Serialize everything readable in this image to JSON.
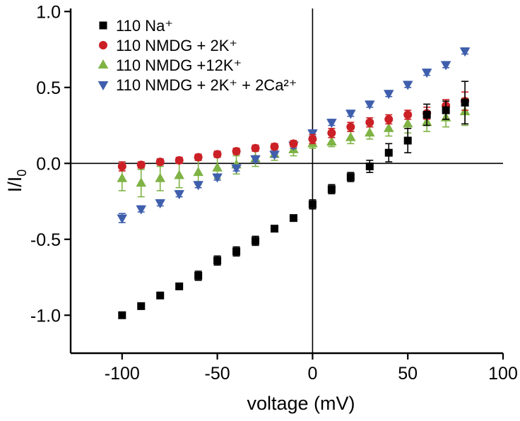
{
  "chart_data": {
    "type": "scatter",
    "title": "",
    "xlabel": "voltage (mV)",
    "ylabel_main": "I/I",
    "ylabel_sub": "0",
    "xlim": [
      -127,
      100
    ],
    "ylim": [
      -1.25,
      1.02
    ],
    "xticks": [
      -100,
      -50,
      0,
      50,
      100
    ],
    "xtick_labels": [
      "-100",
      "-50",
      "0",
      "50",
      "100"
    ],
    "yticks": [
      -1.0,
      -0.5,
      0.0,
      0.5,
      1.0
    ],
    "ytick_labels": [
      "-1.0",
      "-0.5",
      "0.0",
      "0.5",
      "1.0"
    ],
    "grid": false,
    "legend_position": "top-left",
    "reference_lines": {
      "vertical_x": 0,
      "horizontal_y": 0
    },
    "axis_color": "#000000",
    "x": [
      -100,
      -90,
      -80,
      -70,
      -60,
      -50,
      -40,
      -30,
      -20,
      -10,
      0,
      10,
      20,
      30,
      40,
      50,
      60,
      70,
      80
    ],
    "series": [
      {
        "id": "na",
        "label": "110 Na⁺",
        "marker": "square",
        "color": "#000000",
        "y": [
          -1.0,
          -0.94,
          -0.87,
          -0.81,
          -0.74,
          -0.64,
          -0.58,
          -0.51,
          -0.43,
          -0.36,
          -0.27,
          -0.17,
          -0.09,
          -0.02,
          0.07,
          0.15,
          0.32,
          0.35,
          0.4
        ],
        "yerr": [
          0.02,
          0.02,
          0.02,
          0.02,
          0.03,
          0.03,
          0.03,
          0.03,
          0.02,
          0.02,
          0.03,
          0.03,
          0.03,
          0.04,
          0.06,
          0.08,
          0.07,
          0.06,
          0.14
        ]
      },
      {
        "id": "nmdg-2k",
        "label": "110 NMDG + 2K⁺",
        "marker": "circle",
        "color": "#cb2026",
        "y": [
          -0.02,
          -0.01,
          0.01,
          0.02,
          0.04,
          0.06,
          0.08,
          0.1,
          0.11,
          0.13,
          0.16,
          0.2,
          0.24,
          0.27,
          0.29,
          0.32,
          0.33,
          0.38,
          0.41
        ],
        "yerr": [
          0.03,
          0.02,
          0.02,
          0.02,
          0.02,
          0.02,
          0.02,
          0.02,
          0.02,
          0.02,
          0.03,
          0.03,
          0.03,
          0.03,
          0.03,
          0.03,
          0.04,
          0.04,
          0.06
        ]
      },
      {
        "id": "nmdg-12k",
        "label": "110 NMDG +12K⁺",
        "marker": "triangle-up",
        "color": "#7fb344",
        "y": [
          -0.1,
          -0.13,
          -0.1,
          -0.08,
          -0.06,
          -0.03,
          -0.01,
          0.03,
          0.06,
          0.09,
          0.13,
          0.14,
          0.17,
          0.2,
          0.23,
          0.26,
          0.27,
          0.3,
          0.34
        ],
        "yerr": [
          0.08,
          0.09,
          0.08,
          0.08,
          0.08,
          0.07,
          0.06,
          0.05,
          0.04,
          0.04,
          0.03,
          0.03,
          0.04,
          0.04,
          0.05,
          0.06,
          0.06,
          0.06,
          0.09
        ]
      },
      {
        "id": "nmdg-2k-2ca",
        "label": "110 NMDG +  2K⁺ + 2Ca²⁺",
        "marker": "triangle-down",
        "color": "#3f5fad",
        "y": [
          -0.36,
          -0.3,
          -0.26,
          -0.2,
          -0.14,
          -0.09,
          -0.03,
          0.03,
          0.06,
          0.12,
          0.2,
          0.27,
          0.33,
          0.39,
          0.46,
          0.52,
          0.6,
          0.65,
          0.74
        ],
        "yerr": [
          0.03,
          0.02,
          0.02,
          0.02,
          0.02,
          0.02,
          0.02,
          0.02,
          0.02,
          0.02,
          0.02,
          0.02,
          0.02,
          0.02,
          0.02,
          0.02,
          0.02,
          0.02,
          0.02
        ]
      }
    ]
  }
}
